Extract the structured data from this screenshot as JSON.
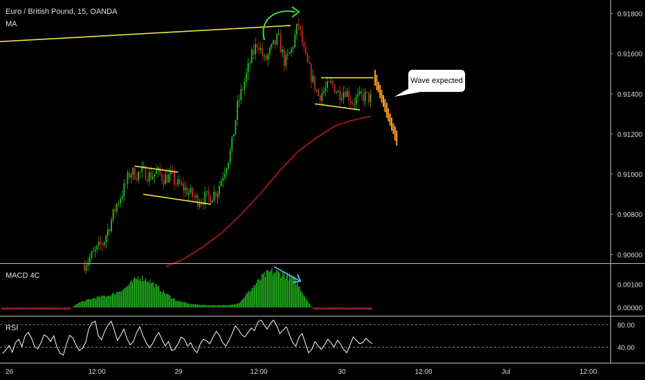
{
  "header": {
    "symbol_title": "Euro / British Pound, 15, OANDA",
    "indicator_ma": "MA"
  },
  "panels": {
    "macd_label": "MACD 4C",
    "rsi_label": "RSI"
  },
  "annotation": {
    "callout_text": "Wave expected"
  },
  "colors": {
    "bull": "#22c11f",
    "bear": "#c62828",
    "ma": "#8e1414",
    "trend": "#f2e53c",
    "projection": "#f59d1e",
    "arrow_green": "#3ddc3d",
    "arrow_cyan": "#4fc3f7",
    "rsi": "#ffffff",
    "axis_text": "#dadada",
    "separator": "#bdbdbd"
  },
  "chart_data": [
    {
      "type": "candlestick",
      "title": "Euro / British Pound, 15, OANDA",
      "indicators": [
        "MA"
      ],
      "ylim": [
        0.9056,
        0.9185
      ],
      "yticks": [
        0.906,
        0.908,
        0.91,
        0.912,
        0.914,
        0.916,
        0.918
      ],
      "ytick_labels": [
        "0.90600",
        "0.90800",
        "0.91000",
        "0.91200",
        "0.91400",
        "0.91600",
        "0.91800"
      ],
      "xtick_labels": [
        "26",
        "12:00",
        "29",
        "12:00",
        "30",
        "12:00",
        "Jul",
        "12:00"
      ],
      "price_path": [
        [
          0.9055,
          0.9058
        ],
        [
          0.9062,
          0.9066
        ],
        [
          0.9075,
          0.9085
        ],
        [
          0.9092,
          0.9101
        ],
        [
          0.91,
          0.9101
        ],
        [
          0.9099,
          0.9101
        ],
        [
          0.9098,
          0.9099
        ],
        [
          0.9095,
          0.9093
        ],
        [
          0.909,
          0.9087
        ],
        [
          0.9088,
          0.9089
        ],
        [
          0.9092,
          0.9102
        ],
        [
          0.9112,
          0.9135
        ],
        [
          0.9146,
          0.9158
        ],
        [
          0.9166,
          0.9156
        ],
        [
          0.9162,
          0.9168
        ],
        [
          0.9155,
          0.9162
        ],
        [
          0.9175,
          0.9158
        ],
        [
          0.9148,
          0.9139
        ],
        [
          0.9142,
          0.9145
        ],
        [
          0.914,
          0.9142
        ],
        [
          0.9136,
          0.9138
        ],
        [
          0.9139,
          0.9137
        ]
      ],
      "ma_path": [
        [
          0.9054,
          0.9058
        ],
        [
          0.9064,
          0.9071
        ],
        [
          0.908,
          0.909
        ],
        [
          0.9101,
          0.9111
        ],
        [
          0.9118,
          0.9124
        ],
        [
          0.9127,
          0.9129
        ]
      ],
      "projection_path": [
        0.9148,
        0.9142,
        0.9136,
        0.913,
        0.9124,
        0.9118
      ],
      "trend_lines": [
        {
          "name": "long-resistance",
          "points": [
            [
              0,
              0.9166
            ],
            [
              420,
              0.9174
            ]
          ]
        },
        {
          "name": "consolidation-top-1",
          "points": [
            [
              195,
              0.9104
            ],
            [
              257,
              0.9101
            ]
          ]
        },
        {
          "name": "consolidation-bottom-1",
          "points": [
            [
              207,
              0.909
            ],
            [
              305,
              0.9085
            ]
          ]
        },
        {
          "name": "consolidation-top-2",
          "points": [
            [
              464,
              0.9148
            ],
            [
              540,
              0.9148
            ]
          ]
        },
        {
          "name": "consolidation-bottom-2",
          "points": [
            [
              455,
              0.9135
            ],
            [
              520,
              0.9132
            ]
          ]
        }
      ]
    },
    {
      "type": "histogram",
      "title": "MACD 4C",
      "ylim": [
        -0.0003,
        0.00185
      ],
      "yticks": [
        0.0,
        0.001
      ],
      "ytick_labels": [
        "0.00000",
        "0.00100"
      ],
      "envelope": [
        [
          0,
          -0.0001
        ],
        [
          100,
          -0.0001
        ],
        [
          112,
          0.0002
        ],
        [
          140,
          0.00045
        ],
        [
          160,
          0.00055
        ],
        [
          180,
          0.00085
        ],
        [
          200,
          0.00135
        ],
        [
          215,
          0.0012
        ],
        [
          235,
          0.0007
        ],
        [
          255,
          0.0003
        ],
        [
          275,
          0.00015
        ],
        [
          300,
          0.0001
        ],
        [
          330,
          0.0001
        ],
        [
          345,
          0.0002
        ],
        [
          365,
          0.0009
        ],
        [
          380,
          0.0014
        ],
        [
          392,
          0.0016
        ],
        [
          410,
          0.00145
        ],
        [
          425,
          0.00125
        ],
        [
          438,
          0.0006
        ],
        [
          452,
          -0.0001
        ],
        [
          540,
          -0.0001
        ]
      ]
    },
    {
      "type": "line",
      "title": "RSI",
      "ylim": [
        16,
        92
      ],
      "yticks": [
        40,
        80
      ],
      "ytick_labels": [
        "40.00",
        "80.00"
      ],
      "values": [
        29,
        35,
        43,
        31,
        48,
        54,
        41,
        60,
        66,
        56,
        41,
        37,
        48,
        62,
        58,
        50,
        60,
        40,
        29,
        26,
        46,
        61,
        56,
        44,
        34,
        38,
        48,
        73,
        83,
        86,
        60,
        53,
        68,
        79,
        86,
        70,
        52,
        61,
        72,
        55,
        44,
        50,
        66,
        76,
        60,
        48,
        39,
        46,
        58,
        66,
        53,
        42,
        50,
        34,
        36,
        46,
        58,
        54,
        42,
        48,
        36,
        30,
        46,
        54,
        51,
        46,
        58,
        68,
        61,
        48,
        42,
        52,
        64,
        78,
        71,
        62,
        58,
        66,
        74,
        69,
        84,
        88,
        80,
        72,
        82,
        88,
        78,
        64,
        70,
        76,
        62,
        48,
        42,
        58,
        64,
        46,
        30,
        36,
        50,
        42,
        36,
        44,
        54,
        48,
        40,
        52,
        46,
        36,
        30,
        44,
        58,
        52,
        46,
        48,
        56,
        50,
        46
      ]
    }
  ]
}
